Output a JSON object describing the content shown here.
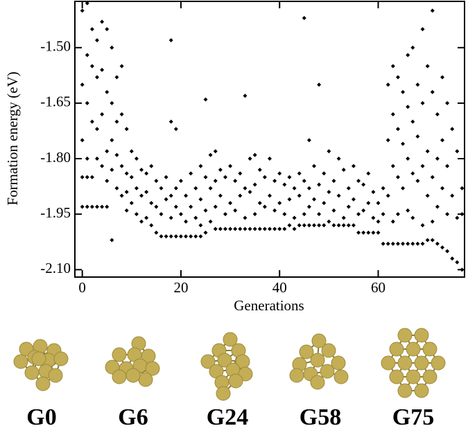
{
  "chart_data": {
    "type": "scatter",
    "xlabel": "Generations",
    "ylabel": "Formation energy (eV)",
    "xlim": [
      -1.5,
      77.5
    ],
    "ylim": [
      -2.12,
      -1.375
    ],
    "xticks": [
      0,
      20,
      40,
      60
    ],
    "yticks": [
      {
        "value": -1.5,
        "label": "-1.50"
      },
      {
        "value": -1.65,
        "label": "-1.65"
      },
      {
        "value": -1.8,
        "label": "-1.80"
      },
      {
        "value": -1.95,
        "label": "-1.95"
      },
      {
        "value": -2.1,
        "label": "-2.10"
      }
    ],
    "color": "#000000",
    "x": [
      0,
      0,
      0,
      0,
      0,
      1,
      1,
      1,
      1,
      1,
      1,
      2,
      2,
      2,
      2,
      2,
      3,
      3,
      3,
      3,
      3,
      4,
      4,
      4,
      4,
      4,
      5,
      5,
      5,
      5,
      5,
      6,
      6,
      6,
      6,
      6,
      7,
      7,
      7,
      7,
      8,
      8,
      8,
      8,
      9,
      9,
      9,
      9,
      10,
      10,
      10,
      11,
      11,
      11,
      12,
      12,
      12,
      13,
      13,
      13,
      14,
      14,
      14,
      15,
      15,
      15,
      16,
      16,
      16,
      17,
      17,
      17,
      18,
      18,
      18,
      18,
      18,
      19,
      19,
      19,
      19,
      20,
      20,
      20,
      21,
      21,
      21,
      22,
      22,
      22,
      23,
      23,
      23,
      24,
      24,
      24,
      24,
      25,
      25,
      25,
      25,
      26,
      26,
      26,
      27,
      27,
      27,
      27,
      28,
      28,
      28,
      29,
      29,
      29,
      30,
      30,
      30,
      31,
      31,
      31,
      32,
      32,
      32,
      33,
      33,
      33,
      33,
      34,
      34,
      34,
      35,
      35,
      35,
      35,
      36,
      36,
      36,
      37,
      37,
      37,
      38,
      38,
      38,
      39,
      39,
      39,
      40,
      40,
      40,
      41,
      41,
      41,
      42,
      42,
      42,
      43,
      43,
      43,
      44,
      44,
      44,
      45,
      45,
      45,
      45,
      46,
      46,
      46,
      46,
      47,
      47,
      47,
      48,
      48,
      48,
      48,
      49,
      49,
      49,
      50,
      50,
      50,
      51,
      51,
      51,
      52,
      52,
      52,
      53,
      53,
      53,
      54,
      54,
      54,
      55,
      55,
      55,
      56,
      56,
      56,
      57,
      57,
      57,
      58,
      58,
      58,
      59,
      59,
      59,
      60,
      60,
      60,
      61,
      61,
      61,
      62,
      62,
      62,
      62,
      63,
      63,
      63,
      63,
      63,
      64,
      64,
      64,
      64,
      64,
      65,
      65,
      65,
      65,
      66,
      66,
      66,
      66,
      66,
      67,
      67,
      67,
      67,
      67,
      68,
      68,
      68,
      68,
      69,
      69,
      69,
      69,
      69,
      70,
      70,
      70,
      70,
      71,
      71,
      71,
      71,
      71,
      72,
      72,
      72,
      72,
      73,
      73,
      73,
      73,
      74,
      74,
      74,
      74,
      75,
      75,
      75,
      76,
      76,
      76,
      77,
      77,
      77
    ],
    "y": [
      -1.4,
      -1.6,
      -1.75,
      -1.85,
      -1.93,
      -1.38,
      -1.52,
      -1.65,
      -1.8,
      -1.85,
      -1.93,
      -1.45,
      -1.55,
      -1.7,
      -1.85,
      -1.93,
      -1.48,
      -1.58,
      -1.72,
      -1.8,
      -1.93,
      -1.43,
      -1.56,
      -1.68,
      -1.82,
      -1.93,
      -1.45,
      -1.62,
      -1.78,
      -1.86,
      -1.93,
      -1.5,
      -1.65,
      -1.75,
      -1.83,
      -2.02,
      -1.58,
      -1.7,
      -1.79,
      -1.88,
      -1.55,
      -1.68,
      -1.82,
      -1.9,
      -1.72,
      -1.84,
      -1.89,
      -1.94,
      -1.78,
      -1.85,
      -1.92,
      -1.8,
      -1.88,
      -1.95,
      -1.83,
      -1.9,
      -1.97,
      -1.84,
      -1.89,
      -1.96,
      -1.82,
      -1.92,
      -1.98,
      -1.86,
      -1.93,
      -2.0,
      -1.88,
      -1.95,
      -2.01,
      -1.85,
      -1.91,
      -2.01,
      -1.48,
      -1.7,
      -1.9,
      -1.96,
      -2.01,
      -1.72,
      -1.88,
      -1.93,
      -2.01,
      -1.86,
      -1.95,
      -2.01,
      -1.9,
      -1.97,
      -2.01,
      -1.84,
      -1.93,
      -2.01,
      -1.88,
      -1.96,
      -2.01,
      -1.82,
      -1.91,
      -1.98,
      -2.01,
      -1.64,
      -1.85,
      -1.94,
      -2.0,
      -1.79,
      -1.88,
      -1.97,
      -1.78,
      -1.86,
      -1.93,
      -1.99,
      -1.83,
      -1.9,
      -1.99,
      -1.85,
      -1.95,
      -1.99,
      -1.82,
      -1.92,
      -1.99,
      -1.86,
      -1.94,
      -1.99,
      -1.84,
      -1.9,
      -1.99,
      -1.63,
      -1.88,
      -1.96,
      -1.99,
      -1.8,
      -1.89,
      -1.99,
      -1.79,
      -1.87,
      -1.95,
      -1.99,
      -1.83,
      -1.92,
      -1.99,
      -1.85,
      -1.93,
      -1.99,
      -1.8,
      -1.9,
      -1.99,
      -1.86,
      -1.94,
      -1.99,
      -1.84,
      -1.92,
      -1.99,
      -1.87,
      -1.95,
      -1.99,
      -1.85,
      -1.91,
      -1.98,
      -1.88,
      -1.96,
      -1.99,
      -1.84,
      -1.9,
      -1.98,
      -1.42,
      -1.86,
      -1.95,
      -1.98,
      -1.75,
      -1.88,
      -1.93,
      -1.98,
      -1.82,
      -1.91,
      -1.98,
      -1.6,
      -1.87,
      -1.95,
      -1.98,
      -1.84,
      -1.92,
      -1.98,
      -1.78,
      -1.89,
      -1.97,
      -1.86,
      -1.94,
      -1.98,
      -1.8,
      -1.9,
      -1.98,
      -1.83,
      -1.96,
      -1.98,
      -1.88,
      -1.93,
      -1.98,
      -1.82,
      -1.91,
      -1.98,
      -1.86,
      -1.95,
      -2.0,
      -1.87,
      -1.94,
      -2.0,
      -1.84,
      -1.92,
      -2.0,
      -1.89,
      -1.96,
      -2.0,
      -1.92,
      -1.97,
      -2.0,
      -1.88,
      -1.95,
      -2.03,
      -1.6,
      -1.75,
      -1.9,
      -2.03,
      -1.55,
      -1.68,
      -1.82,
      -1.97,
      -2.03,
      -1.58,
      -1.72,
      -1.85,
      -1.95,
      -2.03,
      -1.62,
      -1.76,
      -1.88,
      -2.03,
      -1.52,
      -1.66,
      -1.8,
      -1.94,
      -2.03,
      -1.5,
      -1.7,
      -1.84,
      -1.96,
      -2.03,
      -1.6,
      -1.74,
      -1.86,
      -2.03,
      -1.45,
      -1.65,
      -1.82,
      -1.98,
      -2.03,
      -1.55,
      -1.78,
      -1.9,
      -2.02,
      -1.4,
      -1.62,
      -1.85,
      -1.97,
      -2.02,
      -1.68,
      -1.8,
      -1.93,
      -2.03,
      -1.58,
      -1.75,
      -1.88,
      -2.04,
      -1.65,
      -1.82,
      -1.95,
      -2.05,
      -1.72,
      -1.9,
      -2.07,
      -1.78,
      -1.96,
      -2.08,
      -1.88,
      -1.95,
      -2.1
    ],
    "annotations": [
      "G0",
      "G6",
      "G24",
      "G58",
      "G75"
    ]
  }
}
